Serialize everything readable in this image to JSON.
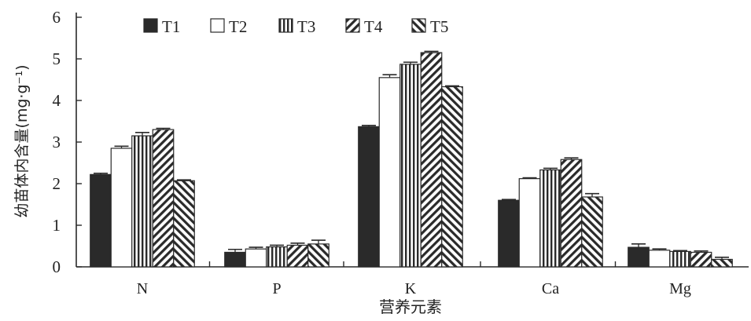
{
  "chart_data": {
    "type": "bar",
    "title": "",
    "xlabel": "营养元素",
    "ylabel": "幼苗体内含量(mg·g⁻¹)",
    "ylim": [
      0,
      6
    ],
    "yticks": [
      0,
      1,
      2,
      3,
      4,
      5,
      6
    ],
    "grid": false,
    "legend_position": "top",
    "categories": [
      "N",
      "P",
      "K",
      "Ca",
      "Mg"
    ],
    "series": [
      {
        "name": "T1",
        "pattern": "solid",
        "values": [
          2.22,
          0.35,
          3.37,
          1.6,
          0.47
        ],
        "errors": [
          0.03,
          0.07,
          0.03,
          0.02,
          0.08
        ]
      },
      {
        "name": "T2",
        "pattern": "open",
        "values": [
          2.85,
          0.43,
          4.55,
          2.12,
          0.4
        ],
        "errors": [
          0.05,
          0.04,
          0.07,
          0.02,
          0.03
        ]
      },
      {
        "name": "T3",
        "pattern": "vertical",
        "values": [
          3.15,
          0.48,
          4.87,
          2.33,
          0.37
        ],
        "errors": [
          0.08,
          0.04,
          0.05,
          0.04,
          0.02
        ]
      },
      {
        "name": "T4",
        "pattern": "diag-down",
        "values": [
          3.3,
          0.52,
          5.15,
          2.58,
          0.35
        ],
        "errors": [
          0.03,
          0.05,
          0.03,
          0.04,
          0.03
        ]
      },
      {
        "name": "T5",
        "pattern": "diag-up",
        "values": [
          2.07,
          0.55,
          4.33,
          1.68,
          0.18
        ],
        "errors": [
          0.02,
          0.09,
          0.02,
          0.08,
          0.05
        ]
      }
    ],
    "colors": {
      "ink": "#2a2a2a",
      "background": "#ffffff"
    }
  }
}
